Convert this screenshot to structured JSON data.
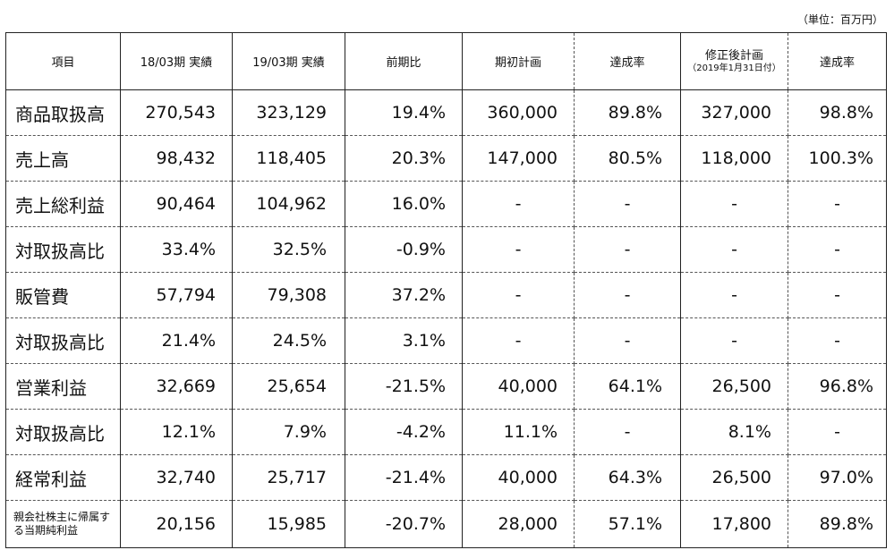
{
  "unit": "（単位：百万円）",
  "headers": [
    "項目",
    "18/03期 実績",
    "19/03期 実績",
    "前期比",
    "期初計画",
    "達成率",
    "修正後計画",
    "達成率"
  ],
  "header_sub": "（2019年1月31日付）",
  "rows": [
    {
      "label": "商品取扱高",
      "v": [
        "270,543",
        "323,129",
        "19.4%",
        "360,000",
        "89.8%",
        "327,000",
        "98.8%"
      ]
    },
    {
      "label": "売上高",
      "v": [
        "98,432",
        "118,405",
        "20.3%",
        "147,000",
        "80.5%",
        "118,000",
        "100.3%"
      ]
    },
    {
      "label": "売上総利益",
      "v": [
        "90,464",
        "104,962",
        "16.0%",
        "-",
        "-",
        "-",
        "-"
      ]
    },
    {
      "label": "対取扱高比",
      "v": [
        "33.4%",
        "32.5%",
        "-0.9%",
        "-",
        "-",
        "-",
        "-"
      ]
    },
    {
      "label": "販管費",
      "v": [
        "57,794",
        "79,308",
        "37.2%",
        "-",
        "-",
        "-",
        "-"
      ]
    },
    {
      "label": "対取扱高比",
      "v": [
        "21.4%",
        "24.5%",
        "3.1%",
        "-",
        "-",
        "-",
        "-"
      ]
    },
    {
      "label": "営業利益",
      "v": [
        "32,669",
        "25,654",
        "-21.5%",
        "40,000",
        "64.1%",
        "26,500",
        "96.8%"
      ]
    },
    {
      "label": "対取扱高比",
      "v": [
        "12.1%",
        "7.9%",
        "-4.2%",
        "11.1%",
        "-",
        "8.1%",
        "-"
      ]
    },
    {
      "label": "経常利益",
      "v": [
        "32,740",
        "25,717",
        "-21.4%",
        "40,000",
        "64.3%",
        "26,500",
        "97.0%"
      ]
    },
    {
      "label": "親会社株主に帰属する当期純利益",
      "v": [
        "20,156",
        "15,985",
        "-20.7%",
        "28,000",
        "57.1%",
        "17,800",
        "89.8%"
      ]
    }
  ]
}
